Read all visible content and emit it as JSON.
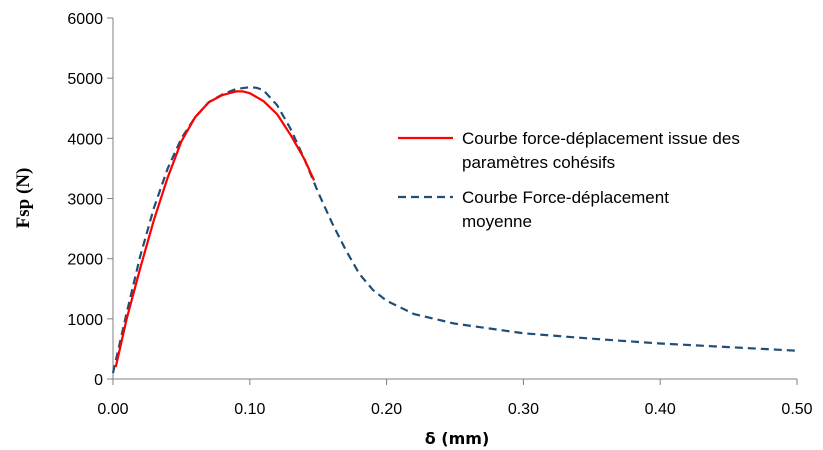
{
  "chart_data": {
    "type": "line",
    "xlabel": "δ (mm)",
    "ylabel": "Fsp (N)",
    "xlim": [
      0,
      0.5
    ],
    "ylim": [
      0,
      6000
    ],
    "x_ticks": [
      "0.00",
      "0.10",
      "0.20",
      "0.30",
      "0.40",
      "0.50"
    ],
    "y_ticks": [
      "0",
      "1000",
      "2000",
      "3000",
      "4000",
      "5000",
      "6000"
    ],
    "grid": false,
    "legend_position": "right",
    "series": [
      {
        "name_lines": [
          "Courbe force-déplacement issue des",
          "paramètres cohésifs"
        ],
        "color": "#ff0000",
        "style": "solid",
        "x": [
          0.002,
          0.01,
          0.02,
          0.03,
          0.04,
          0.05,
          0.06,
          0.07,
          0.08,
          0.09,
          0.095,
          0.1,
          0.11,
          0.12,
          0.13,
          0.14,
          0.147
        ],
        "y": [
          200,
          1000,
          1850,
          2650,
          3350,
          3950,
          4350,
          4600,
          4720,
          4780,
          4780,
          4750,
          4620,
          4400,
          4050,
          3650,
          3300
        ]
      },
      {
        "name_lines": [
          "Courbe Force-déplacement",
          "moyenne"
        ],
        "color": "#1f4e79",
        "style": "dashed",
        "x": [
          0.0,
          0.01,
          0.02,
          0.03,
          0.04,
          0.05,
          0.06,
          0.07,
          0.08,
          0.09,
          0.1,
          0.105,
          0.11,
          0.12,
          0.13,
          0.14,
          0.15,
          0.16,
          0.17,
          0.18,
          0.19,
          0.2,
          0.22,
          0.25,
          0.3,
          0.35,
          0.4,
          0.45,
          0.5
        ],
        "y": [
          100,
          1100,
          2050,
          2850,
          3500,
          4000,
          4350,
          4600,
          4730,
          4820,
          4850,
          4840,
          4800,
          4550,
          4150,
          3650,
          3100,
          2600,
          2150,
          1750,
          1480,
          1300,
          1080,
          920,
          760,
          670,
          590,
          530,
          470
        ]
      }
    ]
  }
}
